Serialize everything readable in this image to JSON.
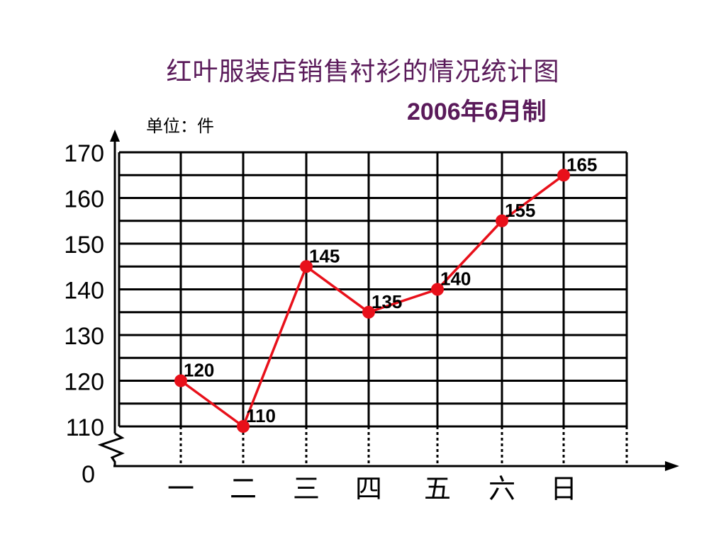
{
  "page": {
    "title": "红叶服装店销售衬衫的情况统计图",
    "subtitle": "2006年6月制",
    "unit_label": "单位：件"
  },
  "chart_data": {
    "type": "line",
    "categories": [
      "一",
      "二",
      "三",
      "四",
      "五",
      "六",
      "日"
    ],
    "series": [
      {
        "values": [
          120,
          110,
          145,
          135,
          140,
          155,
          165
        ],
        "color": "#e8101a"
      }
    ],
    "y_ticks": [
      "170",
      "160",
      "150",
      "140",
      "130",
      "120",
      "110",
      "0"
    ],
    "y_tick_values": [
      170,
      160,
      150,
      140,
      130,
      120,
      110,
      0
    ],
    "ylim": [
      110,
      170
    ],
    "y_axis_break": true,
    "grid": true,
    "data_labels": [
      "120",
      "110",
      "145",
      "135",
      "140",
      "155",
      "165"
    ]
  }
}
